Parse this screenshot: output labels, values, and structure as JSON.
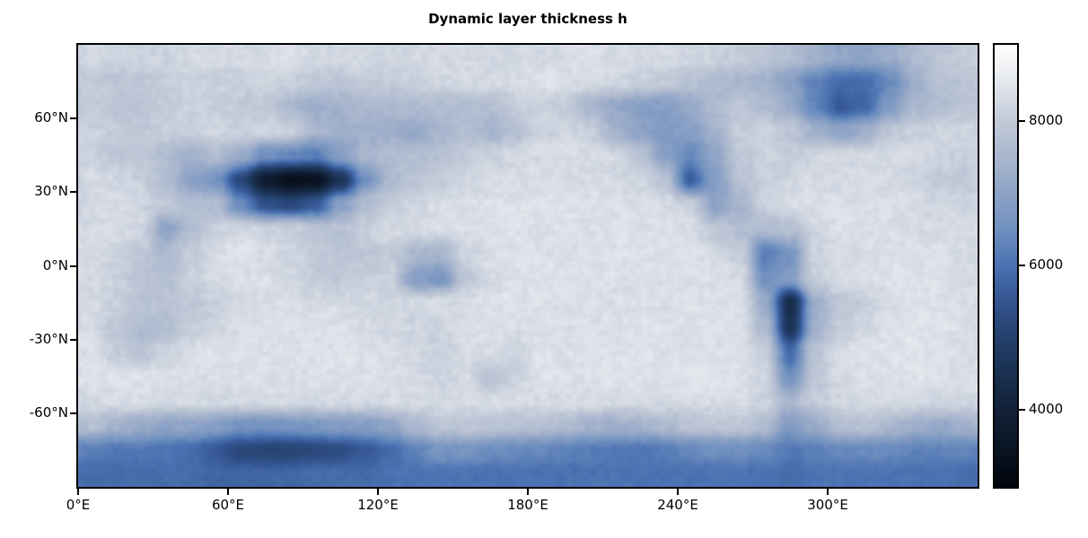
{
  "figure": {
    "title": "Dynamic layer thickness h",
    "background_color": "#ffffff"
  },
  "axes": {
    "x_ticks": [
      {
        "lon": 0,
        "label": "0°E"
      },
      {
        "lon": 60,
        "label": "60°E"
      },
      {
        "lon": 120,
        "label": "120°E"
      },
      {
        "lon": 180,
        "label": "180°E"
      },
      {
        "lon": 240,
        "label": "240°E"
      },
      {
        "lon": 300,
        "label": "300°E"
      }
    ],
    "y_ticks": [
      {
        "lat": 60,
        "label": "60°N"
      },
      {
        "lat": 30,
        "label": "30°N"
      },
      {
        "lat": 0,
        "label": "0°N"
      },
      {
        "lat": -30,
        "label": "-30°N"
      },
      {
        "lat": -60,
        "label": "-60°N"
      }
    ]
  },
  "colorbar": {
    "vmin": 2930,
    "vmax": 9060,
    "ticks": [
      {
        "value": 8000,
        "label": "8000"
      },
      {
        "value": 6000,
        "label": "6000"
      },
      {
        "value": 4000,
        "label": "4000"
      }
    ]
  },
  "chart_data": {
    "type": "heatmap",
    "title": "Dynamic layer thickness h",
    "xlabel": "",
    "ylabel": "",
    "x_range": [
      0,
      360
    ],
    "y_range": [
      -90,
      90
    ],
    "vmin": 2930,
    "vmax": 9060,
    "colormap_name": "ice (black - blue - white)",
    "colormap_stops": [
      [
        2930,
        "#02050c"
      ],
      [
        3000,
        "#030710"
      ],
      [
        3500,
        "#0a1524"
      ],
      [
        4000,
        "#122138"
      ],
      [
        4500,
        "#1a3050"
      ],
      [
        5000,
        "#24406c"
      ],
      [
        5500,
        "#33548f"
      ],
      [
        6000,
        "#4b72b2"
      ],
      [
        6500,
        "#7090bf"
      ],
      [
        7000,
        "#8da3c6"
      ],
      [
        7500,
        "#a9b6ce"
      ],
      [
        8000,
        "#c2cad8"
      ],
      [
        8500,
        "#e2e6ec"
      ],
      [
        9060,
        "#ffffff"
      ]
    ],
    "lon_centers": [
      5,
      15,
      25,
      35,
      45,
      55,
      65,
      75,
      85,
      95,
      105,
      115,
      125,
      135,
      145,
      155,
      165,
      175,
      185,
      195,
      205,
      215,
      225,
      235,
      245,
      255,
      265,
      275,
      285,
      295,
      305,
      315,
      325,
      335,
      345,
      355
    ],
    "lat_centers": [
      85,
      75,
      65,
      55,
      45,
      35,
      25,
      15,
      5,
      -5,
      -15,
      -25,
      -35,
      -45,
      -55,
      -65,
      -75,
      -85
    ],
    "values": [
      [
        8300,
        8200,
        8200,
        8200,
        8300,
        8300,
        8300,
        8300,
        8400,
        8300,
        8300,
        8200,
        8200,
        8200,
        8300,
        8300,
        8300,
        8300,
        8300,
        8300,
        8400,
        8300,
        8300,
        8300,
        8200,
        8100,
        8000,
        7900,
        7700,
        7400,
        7100,
        7000,
        7200,
        7600,
        7900,
        8100
      ],
      [
        8000,
        7900,
        7900,
        8000,
        8100,
        8100,
        8100,
        8200,
        8100,
        8000,
        7900,
        8000,
        8000,
        8100,
        8200,
        8300,
        8300,
        8300,
        8400,
        8400,
        8300,
        8200,
        8100,
        8000,
        7800,
        7600,
        7500,
        7400,
        6900,
        6300,
        5900,
        5900,
        6400,
        7300,
        7800,
        7900
      ],
      [
        8000,
        7900,
        7900,
        8000,
        8100,
        8100,
        8000,
        7900,
        7500,
        7300,
        7400,
        7600,
        7600,
        7600,
        7700,
        7700,
        7700,
        8000,
        8100,
        8000,
        7500,
        7100,
        6900,
        6900,
        7200,
        7600,
        7900,
        7600,
        7200,
        6300,
        5600,
        5800,
        6800,
        7500,
        7700,
        7900
      ],
      [
        8100,
        8000,
        8000,
        8100,
        8100,
        8200,
        8100,
        8100,
        8100,
        7500,
        7300,
        7300,
        7300,
        7200,
        7500,
        7700,
        7400,
        7700,
        8100,
        8200,
        8100,
        7400,
        7000,
        6800,
        6900,
        7400,
        8000,
        8100,
        7900,
        7400,
        7000,
        7300,
        7900,
        8100,
        8200,
        8200
      ],
      [
        8100,
        7900,
        8000,
        7700,
        7400,
        7600,
        7200,
        6500,
        6300,
        6200,
        6900,
        7500,
        7700,
        7700,
        7800,
        8000,
        8100,
        8200,
        8300,
        8300,
        8300,
        8200,
        7900,
        6900,
        6400,
        7000,
        7900,
        8100,
        8000,
        8200,
        8300,
        8300,
        8300,
        8300,
        8200,
        8100
      ],
      [
        8300,
        8200,
        8100,
        7700,
        7000,
        6600,
        5200,
        3800,
        3300,
        3400,
        4600,
        6600,
        7600,
        7800,
        8000,
        8200,
        8300,
        8300,
        8300,
        8300,
        8300,
        8300,
        8200,
        7900,
        5700,
        6900,
        7800,
        8100,
        8200,
        8300,
        8300,
        8300,
        8300,
        8200,
        8000,
        7900
      ],
      [
        8300,
        8300,
        8200,
        8000,
        7800,
        7600,
        6400,
        5400,
        5200,
        5600,
        6900,
        7700,
        8000,
        8200,
        8300,
        8300,
        8400,
        8400,
        8400,
        8400,
        8400,
        8400,
        8400,
        8300,
        8100,
        7000,
        7500,
        8100,
        8300,
        8400,
        8400,
        8400,
        8400,
        8300,
        8200,
        8100
      ],
      [
        8300,
        8300,
        8200,
        7000,
        7700,
        8100,
        8200,
        8100,
        8100,
        7900,
        7800,
        8100,
        8300,
        8300,
        8400,
        8400,
        8400,
        8400,
        8400,
        8400,
        8400,
        8400,
        8400,
        8400,
        8300,
        7900,
        7700,
        7600,
        7700,
        8200,
        8400,
        8400,
        8400,
        8400,
        8300,
        8300
      ],
      [
        8300,
        8200,
        7900,
        7600,
        8000,
        8300,
        8400,
        8300,
        8200,
        8000,
        7900,
        7900,
        8000,
        7600,
        7500,
        8200,
        8400,
        8400,
        8400,
        8400,
        8400,
        8400,
        8400,
        8400,
        8400,
        8300,
        8100,
        6200,
        6600,
        8100,
        8300,
        8400,
        8400,
        8400,
        8400,
        8300
      ],
      [
        8300,
        8100,
        7800,
        7700,
        8100,
        8300,
        8400,
        8400,
        8300,
        8100,
        8000,
        8100,
        8100,
        6900,
        6700,
        7900,
        8300,
        8400,
        8400,
        8400,
        8400,
        8400,
        8400,
        8400,
        8400,
        8400,
        8300,
        6500,
        6900,
        8000,
        8300,
        8300,
        8400,
        8400,
        8400,
        8300
      ],
      [
        8300,
        8100,
        7800,
        7800,
        7900,
        8100,
        8300,
        8400,
        8400,
        8300,
        8300,
        8200,
        8200,
        8300,
        8300,
        8300,
        8400,
        8400,
        8400,
        8400,
        8400,
        8400,
        8400,
        8400,
        8400,
        8400,
        8400,
        7300,
        4400,
        7200,
        7900,
        8000,
        8300,
        8400,
        8400,
        8300
      ],
      [
        8300,
        7900,
        7600,
        7700,
        8000,
        8200,
        8400,
        8400,
        8400,
        8400,
        8400,
        8300,
        8200,
        8200,
        8200,
        8300,
        8400,
        8400,
        8400,
        8400,
        8400,
        8400,
        8400,
        8400,
        8400,
        8400,
        8400,
        7600,
        4600,
        7400,
        8000,
        8200,
        8400,
        8400,
        8400,
        8300
      ],
      [
        8300,
        8000,
        7800,
        8100,
        8300,
        8400,
        8400,
        8400,
        8400,
        8400,
        8400,
        8400,
        8300,
        8200,
        8100,
        8300,
        8300,
        8200,
        8400,
        8400,
        8400,
        8400,
        8400,
        8400,
        8400,
        8400,
        8400,
        8100,
        5900,
        7900,
        8300,
        8400,
        8400,
        8400,
        8400,
        8300
      ],
      [
        8400,
        8400,
        8400,
        8400,
        8400,
        8400,
        8400,
        8400,
        8400,
        8400,
        8400,
        8400,
        8400,
        8300,
        8200,
        8300,
        7800,
        8100,
        8400,
        8400,
        8400,
        8400,
        8400,
        8400,
        8400,
        8400,
        8400,
        8200,
        6500,
        7800,
        8300,
        8400,
        8400,
        8400,
        8400,
        8400
      ],
      [
        8300,
        8300,
        8300,
        8300,
        8300,
        8300,
        8300,
        8300,
        8300,
        8300,
        8300,
        8300,
        8300,
        8300,
        8300,
        8300,
        8300,
        8300,
        8300,
        8300,
        8300,
        8300,
        8300,
        8300,
        8300,
        8300,
        8300,
        8200,
        7500,
        8000,
        8200,
        8300,
        8300,
        8200,
        8200,
        8200
      ],
      [
        7700,
        7400,
        7200,
        7000,
        7000,
        6900,
        6700,
        6600,
        6600,
        6700,
        6800,
        6900,
        7100,
        7600,
        7900,
        8000,
        7900,
        7800,
        7800,
        7700,
        7400,
        7300,
        7400,
        7600,
        7800,
        7900,
        7900,
        7700,
        6800,
        7200,
        7700,
        7800,
        7600,
        7300,
        7200,
        7400
      ],
      [
        6200,
        6100,
        6100,
        6000,
        5900,
        5600,
        5200,
        5100,
        5100,
        5200,
        5300,
        5600,
        5900,
        6300,
        6700,
        6700,
        6500,
        6400,
        6400,
        6300,
        6200,
        6100,
        6100,
        6200,
        6400,
        6500,
        6500,
        6400,
        6100,
        6200,
        6400,
        6400,
        6400,
        6300,
        6300,
        6300
      ],
      [
        5900,
        5900,
        5900,
        5900,
        5900,
        5800,
        5800,
        5800,
        5800,
        5900,
        5900,
        5900,
        6000,
        6000,
        6000,
        6000,
        6000,
        6000,
        6000,
        6000,
        6000,
        6000,
        6000,
        6000,
        6000,
        6000,
        6000,
        6000,
        5900,
        6000,
        6000,
        6000,
        6000,
        6000,
        6000,
        5900
      ]
    ]
  }
}
